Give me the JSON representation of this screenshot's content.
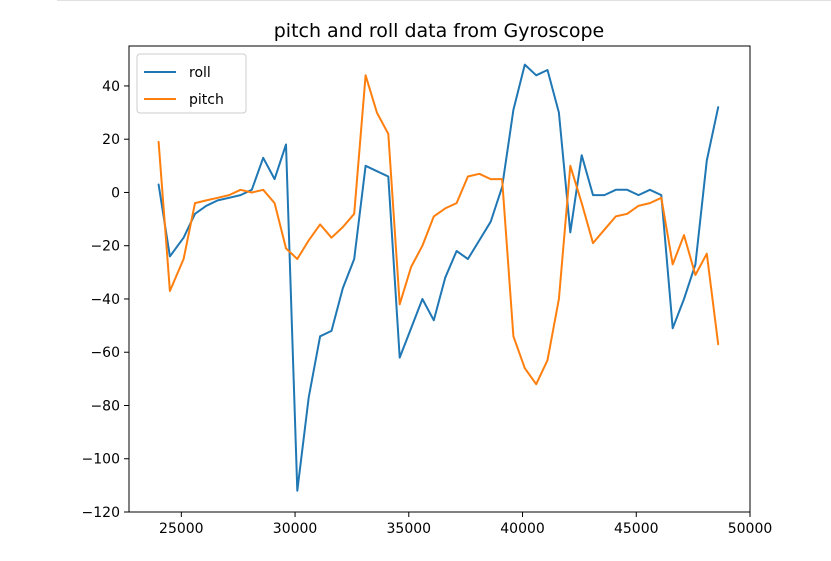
{
  "chart_data": {
    "type": "line",
    "title": "pitch and roll data from Gyroscope",
    "xlabel": "",
    "ylabel": "",
    "xlim": [
      22700,
      50000
    ],
    "ylim": [
      -120,
      55
    ],
    "xticks": [
      25000,
      30000,
      35000,
      40000,
      45000,
      50000
    ],
    "yticks": [
      -120,
      -100,
      -80,
      -60,
      -40,
      -20,
      0,
      20,
      40
    ],
    "xtick_labels": [
      "25000",
      "30000",
      "35000",
      "40000",
      "45000",
      "50000"
    ],
    "ytick_labels": [
      "−120",
      "−100",
      "−80",
      "−60",
      "−40",
      "−20",
      "0",
      "20",
      "40"
    ],
    "grid": false,
    "legend_position": "top-left",
    "series": [
      {
        "name": "roll",
        "color": "#1f77b4",
        "x": [
          24000,
          24500,
          25100,
          25600,
          26100,
          26600,
          27100,
          27600,
          28100,
          28600,
          29100,
          29600,
          30100,
          30600,
          31100,
          31600,
          32100,
          32600,
          33100,
          33600,
          34100,
          34600,
          35100,
          35600,
          36100,
          36600,
          37100,
          37600,
          38100,
          38600,
          39100,
          39600,
          40100,
          40600,
          41100,
          41600,
          42100,
          42600,
          43100,
          43600,
          44100,
          44600,
          45100,
          45600,
          46100,
          46600,
          47100,
          47600,
          48100,
          48600
        ],
        "values": [
          3,
          -24,
          -17,
          -8,
          -5,
          -3,
          -2,
          -1,
          1,
          13,
          5,
          18,
          -112,
          -77,
          -54,
          -52,
          -36,
          -25,
          10,
          8,
          6,
          -62,
          -51,
          -40,
          -48,
          -32,
          -22,
          -25,
          -18,
          -11,
          2,
          31,
          48,
          44,
          46,
          30,
          -15,
          14,
          -1,
          -1,
          1,
          1,
          -1,
          1,
          -1,
          -51,
          -40,
          -27,
          12,
          32
        ]
      },
      {
        "name": "pitch",
        "color": "#ff7f0e",
        "x": [
          24000,
          24500,
          25100,
          25600,
          26100,
          26600,
          27100,
          27600,
          28100,
          28600,
          29100,
          29600,
          30100,
          30600,
          31100,
          31600,
          32100,
          32600,
          33100,
          33600,
          34100,
          34600,
          35100,
          35600,
          36100,
          36600,
          37100,
          37600,
          38100,
          38600,
          39100,
          39600,
          40100,
          40600,
          41100,
          41600,
          42100,
          42600,
          43100,
          43600,
          44100,
          44600,
          45100,
          45600,
          46100,
          46600,
          47100,
          47600,
          48100,
          48600
        ],
        "values": [
          19,
          -37,
          -25,
          -4,
          -3,
          -2,
          -1,
          1,
          0,
          1,
          -4,
          -21,
          -25,
          -18,
          -12,
          -17,
          -13,
          -8,
          44,
          30,
          22,
          -42,
          -28,
          -20,
          -9,
          -6,
          -4,
          6,
          7,
          5,
          5,
          -54,
          -66,
          -72,
          -63,
          -40,
          10,
          -4,
          -19,
          -14,
          -9,
          -8,
          -5,
          -4,
          -2,
          -27,
          -16,
          -31,
          -23,
          -57
        ]
      }
    ]
  }
}
